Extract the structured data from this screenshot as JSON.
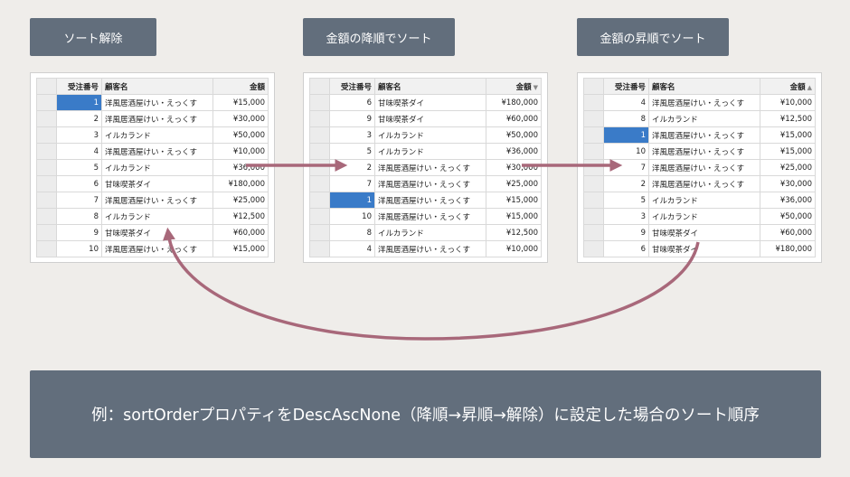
{
  "labels": {
    "none": "ソート解除",
    "desc": "金額の降順でソート",
    "asc": "金額の昇順でソート"
  },
  "columns": {
    "no": "受注番号",
    "name": "顧客名",
    "amount": "金額"
  },
  "grids": {
    "none": {
      "sort": "",
      "rows": [
        {
          "no": "1",
          "name": "洋風居酒屋けい・えっくす",
          "amount": "¥15,000",
          "selected": true
        },
        {
          "no": "2",
          "name": "洋風居酒屋けい・えっくす",
          "amount": "¥30,000"
        },
        {
          "no": "3",
          "name": "イルカランド",
          "amount": "¥50,000"
        },
        {
          "no": "4",
          "name": "洋風居酒屋けい・えっくす",
          "amount": "¥10,000"
        },
        {
          "no": "5",
          "name": "イルカランド",
          "amount": "¥36,000"
        },
        {
          "no": "6",
          "name": "甘味喫茶ダイ",
          "amount": "¥180,000"
        },
        {
          "no": "7",
          "name": "洋風居酒屋けい・えっくす",
          "amount": "¥25,000"
        },
        {
          "no": "8",
          "name": "イルカランド",
          "amount": "¥12,500"
        },
        {
          "no": "9",
          "name": "甘味喫茶ダイ",
          "amount": "¥60,000"
        },
        {
          "no": "10",
          "name": "洋風居酒屋けい・えっくす",
          "amount": "¥15,000"
        }
      ]
    },
    "desc": {
      "sort": "▼",
      "rows": [
        {
          "no": "6",
          "name": "甘味喫茶ダイ",
          "amount": "¥180,000"
        },
        {
          "no": "9",
          "name": "甘味喫茶ダイ",
          "amount": "¥60,000"
        },
        {
          "no": "3",
          "name": "イルカランド",
          "amount": "¥50,000"
        },
        {
          "no": "5",
          "name": "イルカランド",
          "amount": "¥36,000"
        },
        {
          "no": "2",
          "name": "洋風居酒屋けい・えっくす",
          "amount": "¥30,000"
        },
        {
          "no": "7",
          "name": "洋風居酒屋けい・えっくす",
          "amount": "¥25,000"
        },
        {
          "no": "1",
          "name": "洋風居酒屋けい・えっくす",
          "amount": "¥15,000",
          "selected": true
        },
        {
          "no": "10",
          "name": "洋風居酒屋けい・えっくす",
          "amount": "¥15,000"
        },
        {
          "no": "8",
          "name": "イルカランド",
          "amount": "¥12,500"
        },
        {
          "no": "4",
          "name": "洋風居酒屋けい・えっくす",
          "amount": "¥10,000"
        }
      ]
    },
    "asc": {
      "sort": "▲",
      "rows": [
        {
          "no": "4",
          "name": "洋風居酒屋けい・えっくす",
          "amount": "¥10,000"
        },
        {
          "no": "8",
          "name": "イルカランド",
          "amount": "¥12,500"
        },
        {
          "no": "1",
          "name": "洋風居酒屋けい・えっくす",
          "amount": "¥15,000",
          "selected": true
        },
        {
          "no": "10",
          "name": "洋風居酒屋けい・えっくす",
          "amount": "¥15,000"
        },
        {
          "no": "7",
          "name": "洋風居酒屋けい・えっくす",
          "amount": "¥25,000"
        },
        {
          "no": "2",
          "name": "洋風居酒屋けい・えっくす",
          "amount": "¥30,000"
        },
        {
          "no": "5",
          "name": "イルカランド",
          "amount": "¥36,000"
        },
        {
          "no": "3",
          "name": "イルカランド",
          "amount": "¥50,000"
        },
        {
          "no": "9",
          "name": "甘味喫茶ダイ",
          "amount": "¥60,000"
        },
        {
          "no": "6",
          "name": "甘味喫茶ダイ",
          "amount": "¥180,000"
        }
      ]
    }
  },
  "caption": "例：sortOrderプロパティをDescAscNone（降順→昇順→解除）に設定した場合のソート順序",
  "colors": {
    "background": "#efedea",
    "label_box": "#626e7c",
    "arrow": "#a8687a",
    "selection": "#3a7bc8"
  }
}
